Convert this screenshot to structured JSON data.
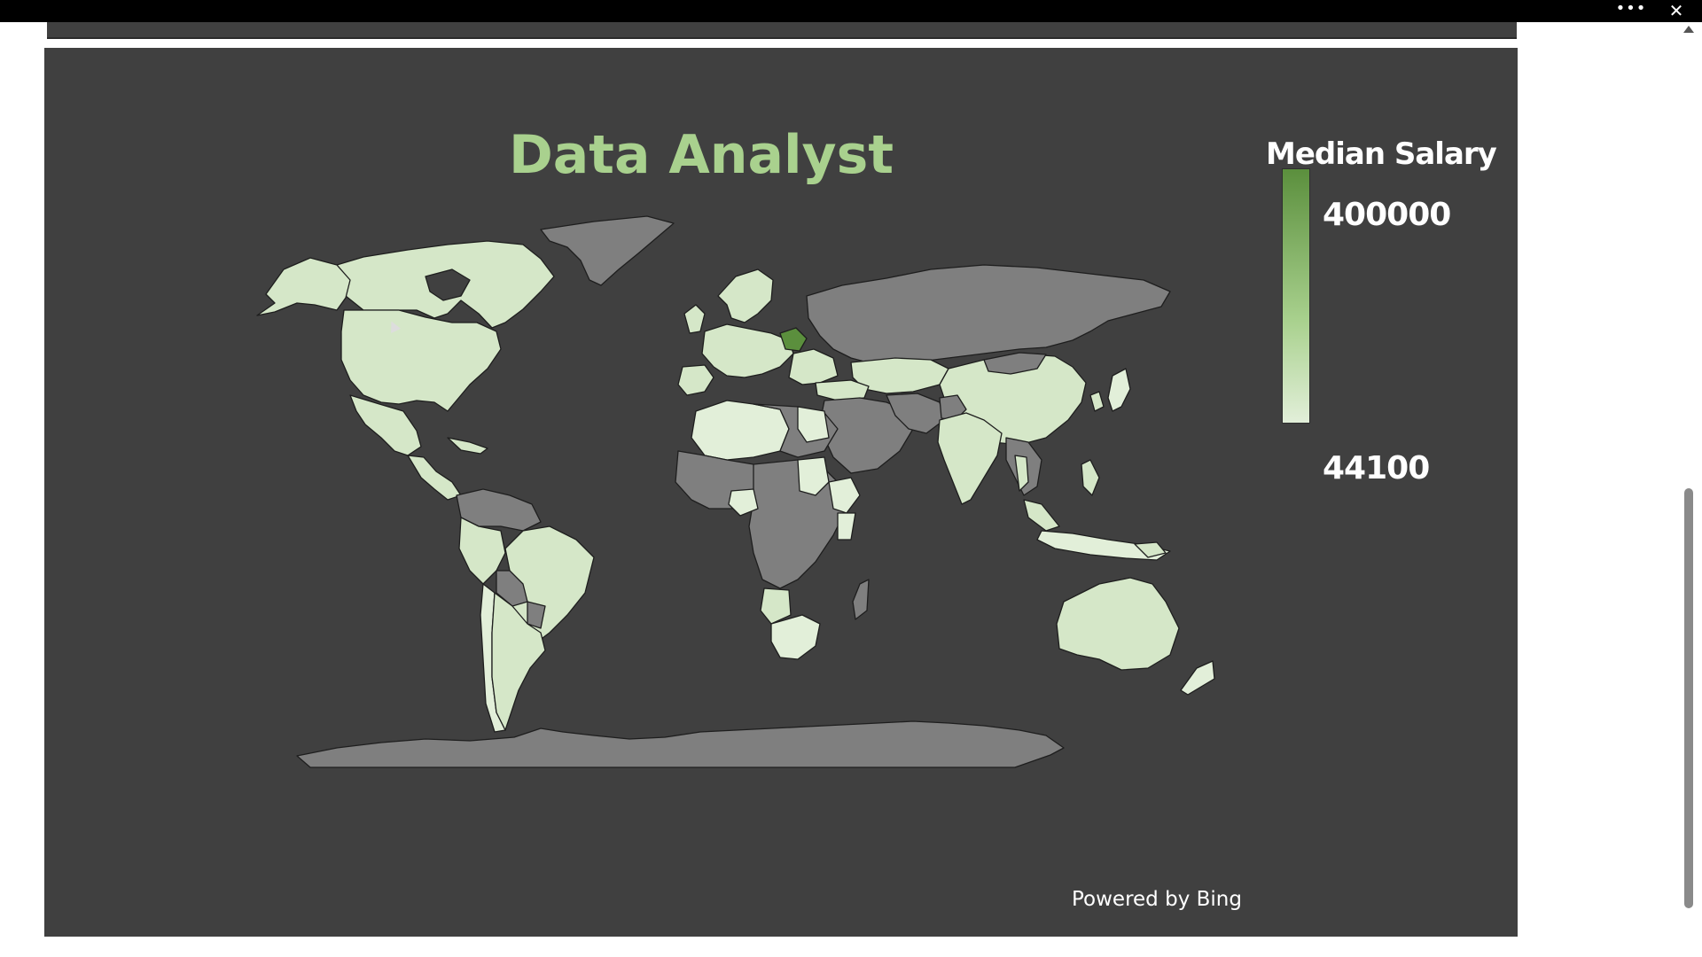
{
  "window": {
    "more_icon": "more-horizontal-icon",
    "close_icon": "close-icon"
  },
  "map": {
    "title": "Data Analyst",
    "legend_title": "Median Salary",
    "legend_max": "400000",
    "legend_min": "44100",
    "attribution": "Powered by Bing",
    "colors": {
      "background": "#404040",
      "title": "#a9d18e",
      "high": "#5b8f3d",
      "mid": "#a9d18e",
      "low": "#e2efd9",
      "no_data": "#7f7f7f"
    }
  },
  "chart_data": {
    "type": "choropleth",
    "title": "Data Analyst",
    "legend": {
      "title": "Median Salary",
      "max": 400000,
      "min": 44100
    }
  }
}
